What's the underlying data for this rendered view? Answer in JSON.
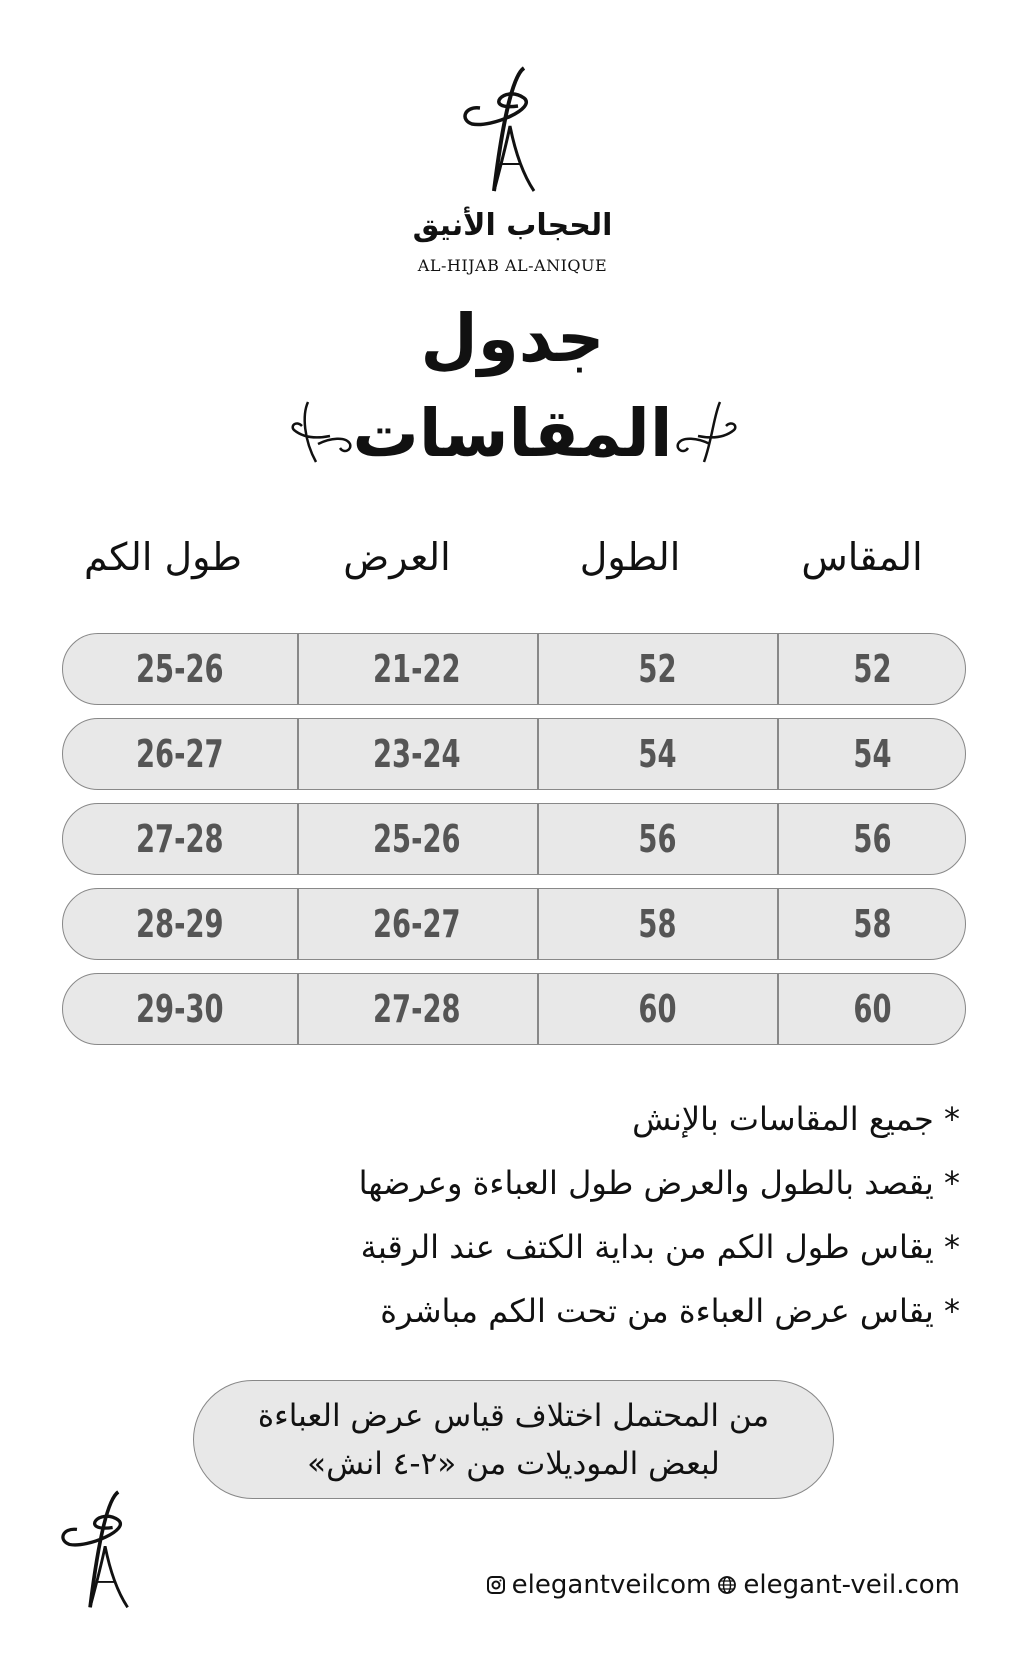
{
  "brand": {
    "arabic_name": "الحجاب الأنيق",
    "english_name": "AL-HIJAB AL-ANIQUE"
  },
  "title": {
    "line1": "جدول",
    "line2": "المقاسات"
  },
  "table": {
    "headers": [
      "المقاس",
      "الطول",
      "العرض",
      "طول الكم"
    ],
    "rows": [
      [
        "52",
        "52",
        "21-22",
        "25-26"
      ],
      [
        "54",
        "54",
        "23-24",
        "26-27"
      ],
      [
        "56",
        "56",
        "25-26",
        "27-28"
      ],
      [
        "58",
        "58",
        "26-27",
        "28-29"
      ],
      [
        "60",
        "60",
        "27-28",
        "29-30"
      ]
    ]
  },
  "notes": [
    "* جميع المقاسات بالإنش",
    "* يقصد بالطول والعرض طول العباءة وعرضها",
    "* يقاس طول الكم من بداية الكتف عند الرقبة",
    "* يقاس عرض العباءة من تحت الكم مباشرة"
  ],
  "disclaimer": {
    "line1": "من المحتمل اختلاف قياس عرض العباءة",
    "line2": "لبعض الموديلات من «٢-٤ انش»"
  },
  "footer": {
    "instagram": "elegantveilcom",
    "website": "elegant-veil.com",
    "instagram_icon": "instagram-icon",
    "web_icon": "globe-icon"
  },
  "colors": {
    "row_fill": "#e8e8e8",
    "row_border": "#888888",
    "value_text": "#555555"
  }
}
